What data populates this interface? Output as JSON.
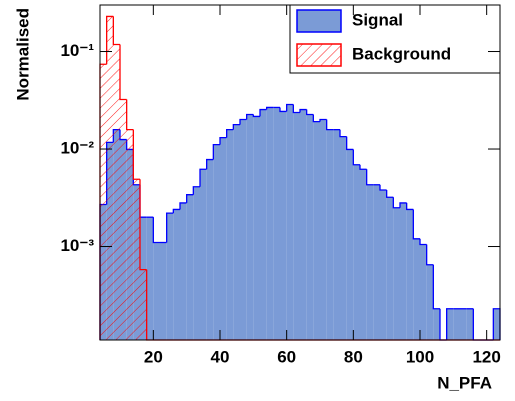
{
  "chart_data": {
    "type": "histogram",
    "x_label": "N_PFA",
    "y_label": "Normalised",
    "bins": [
      4,
      6,
      8,
      10,
      12,
      14,
      16,
      18,
      20,
      22,
      24,
      26,
      28,
      30,
      32,
      34,
      36,
      38,
      40,
      42,
      44,
      46,
      48,
      50,
      52,
      54,
      56,
      58,
      60,
      62,
      64,
      66,
      68,
      70,
      72,
      74,
      76,
      78,
      80,
      82,
      84,
      86,
      88,
      90,
      92,
      94,
      96,
      98,
      100,
      102,
      104,
      106,
      108,
      110,
      112,
      114,
      116,
      118,
      120,
      122,
      124
    ],
    "series": [
      {
        "name": "Signal",
        "color": "#7b9bd6",
        "edge_color": "#0000ff",
        "hatch": false,
        "values": [
          0.0027,
          0.0117,
          0.0158,
          0.0125,
          0.0099,
          0.0043,
          0.002,
          0.002,
          0.0011,
          0.0011,
          0.0022,
          0.0024,
          0.0028,
          0.0034,
          0.0041,
          0.0062,
          0.0078,
          0.0111,
          0.0131,
          0.0158,
          0.0178,
          0.0201,
          0.0226,
          0.0216,
          0.0254,
          0.0267,
          0.0267,
          0.0243,
          0.0286,
          0.0237,
          0.0254,
          0.0226,
          0.0191,
          0.0201,
          0.0158,
          0.0158,
          0.0134,
          0.0099,
          0.0069,
          0.0062,
          0.0043,
          0.0043,
          0.0038,
          0.0032,
          0.0025,
          0.0028,
          0.0024,
          0.0012,
          0.00105,
          0.00065,
          0.00023,
          0,
          0.00023,
          0.00023,
          0.00023,
          0.00023,
          0,
          0,
          0,
          0.00023
        ]
      },
      {
        "name": "Background",
        "color": "#ff0000",
        "edge_color": "#ff0000",
        "hatch": true,
        "values": [
          0.074,
          0.229,
          0.118,
          0.0322,
          0.0158,
          0.0049,
          0.00058,
          0,
          0,
          0,
          0,
          0,
          0,
          0,
          0,
          0,
          0,
          0,
          0,
          0,
          0,
          0,
          0,
          0,
          0,
          0,
          0,
          0,
          0,
          0,
          0,
          0,
          0,
          0,
          0,
          0,
          0,
          0,
          0,
          0,
          0,
          0,
          0,
          0,
          0,
          0,
          0,
          0,
          0,
          0,
          0,
          0,
          0,
          0,
          0,
          0,
          0,
          0,
          0,
          0
        ]
      }
    ],
    "xlim": [
      4,
      124
    ],
    "xticks": [
      20,
      40,
      60,
      80,
      100,
      120
    ],
    "ylim": [
      0.00011,
      0.3
    ],
    "log_y": true,
    "yticks": [
      {
        "value": 0.001,
        "label": "10⁻³"
      },
      {
        "value": 0.01,
        "label": "10⁻²"
      },
      {
        "value": 0.1,
        "label": "10⁻¹"
      }
    ],
    "legend": "upper right"
  }
}
